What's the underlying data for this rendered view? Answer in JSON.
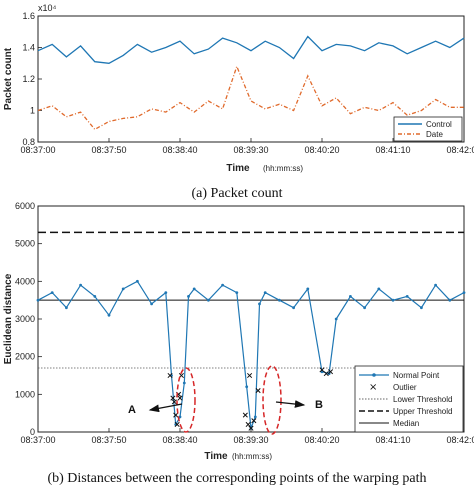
{
  "chart_data": [
    {
      "type": "line",
      "caption": "(a) Packet count",
      "exponent_label": "x10⁴",
      "xlabel": "Time",
      "xlabel_unit": "(hh:mm:ss)",
      "ylabel": "Packet count",
      "ylim": [
        0.8,
        1.6
      ],
      "yticks": [
        "0.8",
        "1",
        "1.2",
        "1.4",
        "1.6"
      ],
      "xlim": [
        0,
        300
      ],
      "xtick_values": [
        0,
        50,
        100,
        150,
        200,
        250,
        300
      ],
      "xtick_labels": [
        "08:37:00",
        "08:37:50",
        "08:38:40",
        "08:39:30",
        "08:40:20",
        "08:41:10",
        "08:42:00"
      ],
      "legend_position": "bottom-right",
      "series": [
        {
          "name": "Control",
          "color": "#1f77b4",
          "style": "solid",
          "x": [
            0,
            10,
            20,
            30,
            40,
            50,
            60,
            70,
            80,
            90,
            100,
            110,
            120,
            130,
            140,
            150,
            160,
            170,
            180,
            190,
            200,
            210,
            220,
            230,
            240,
            250,
            260,
            270,
            280,
            290,
            300
          ],
          "values": [
            1.38,
            1.42,
            1.34,
            1.41,
            1.31,
            1.3,
            1.35,
            1.42,
            1.37,
            1.4,
            1.44,
            1.36,
            1.39,
            1.46,
            1.43,
            1.38,
            1.44,
            1.4,
            1.33,
            1.47,
            1.38,
            1.42,
            1.41,
            1.38,
            1.43,
            1.41,
            1.36,
            1.4,
            1.44,
            1.4,
            1.46
          ]
        },
        {
          "name": "Date",
          "color": "#e06a2c",
          "style": "dashdot",
          "x": [
            0,
            10,
            20,
            30,
            40,
            50,
            60,
            70,
            80,
            90,
            100,
            110,
            120,
            130,
            140,
            150,
            160,
            170,
            180,
            190,
            200,
            210,
            220,
            230,
            240,
            250,
            260,
            270,
            280,
            290,
            300
          ],
          "values": [
            1.0,
            1.03,
            0.96,
            0.99,
            0.88,
            0.93,
            0.95,
            0.96,
            1.01,
            0.99,
            1.05,
            0.99,
            1.06,
            1.01,
            1.28,
            1.06,
            1.01,
            1.04,
            1.0,
            1.22,
            1.03,
            1.08,
            0.98,
            1.02,
            1.0,
            1.05,
            0.97,
            1.0,
            1.07,
            1.02,
            1.02
          ]
        }
      ]
    },
    {
      "type": "line",
      "caption": "(b) Distances between the corresponding points of the warping path",
      "xlabel": "Time",
      "xlabel_unit": "(hh:mm:ss)",
      "ylabel": "Euclidean distance",
      "ylim": [
        0,
        6000
      ],
      "yticks": [
        "0",
        "1000",
        "2000",
        "3000",
        "4000",
        "5000",
        "6000"
      ],
      "xlim": [
        0,
        300
      ],
      "xtick_values": [
        0,
        50,
        100,
        150,
        200,
        250,
        300
      ],
      "xtick_labels": [
        "08:37:00",
        "08:37:50",
        "08:38:40",
        "08:39:30",
        "08:40:20",
        "08:41:10",
        "08:42:00"
      ],
      "legend_position": "bottom-right",
      "lower_threshold": 1700,
      "upper_threshold": 5300,
      "median": 3500,
      "series": [
        {
          "name": "Normal Point",
          "color": "#1f77b4",
          "x": [
            0,
            10,
            20,
            30,
            40,
            50,
            60,
            70,
            80,
            90,
            94,
            97,
            100,
            103,
            106,
            110,
            120,
            130,
            140,
            147,
            150,
            153,
            156,
            160,
            170,
            180,
            190,
            200,
            205,
            210,
            220,
            230,
            240,
            250,
            260,
            270,
            280,
            290,
            300
          ],
          "values": [
            3500,
            3700,
            3300,
            3900,
            3600,
            3100,
            3800,
            4000,
            3400,
            3700,
            1500,
            200,
            400,
            1300,
            3600,
            3800,
            3500,
            3900,
            3700,
            1200,
            100,
            400,
            3400,
            3700,
            3500,
            3300,
            3800,
            1600,
            1550,
            3000,
            3600,
            3300,
            3800,
            3500,
            3600,
            3300,
            3900,
            3500,
            3700
          ]
        }
      ],
      "outliers": {
        "name": "Outlier",
        "x": [
          93,
          95,
          96,
          97,
          98,
          99,
          100,
          101,
          146,
          148,
          149,
          150,
          152,
          155,
          200,
          203,
          206
        ],
        "values": [
          1500,
          900,
          800,
          450,
          200,
          1000,
          900,
          1500,
          450,
          200,
          1500,
          100,
          300,
          1100,
          1650,
          1550,
          1600
        ]
      },
      "legend": [
        "Normal Point",
        "Outlier",
        "Lower Threshold",
        "Upper Threshold",
        "Median"
      ],
      "annotations": [
        {
          "text": "A",
          "x": 99,
          "y": 850
        },
        {
          "text": "B",
          "x": 151,
          "y": 800
        }
      ]
    }
  ]
}
